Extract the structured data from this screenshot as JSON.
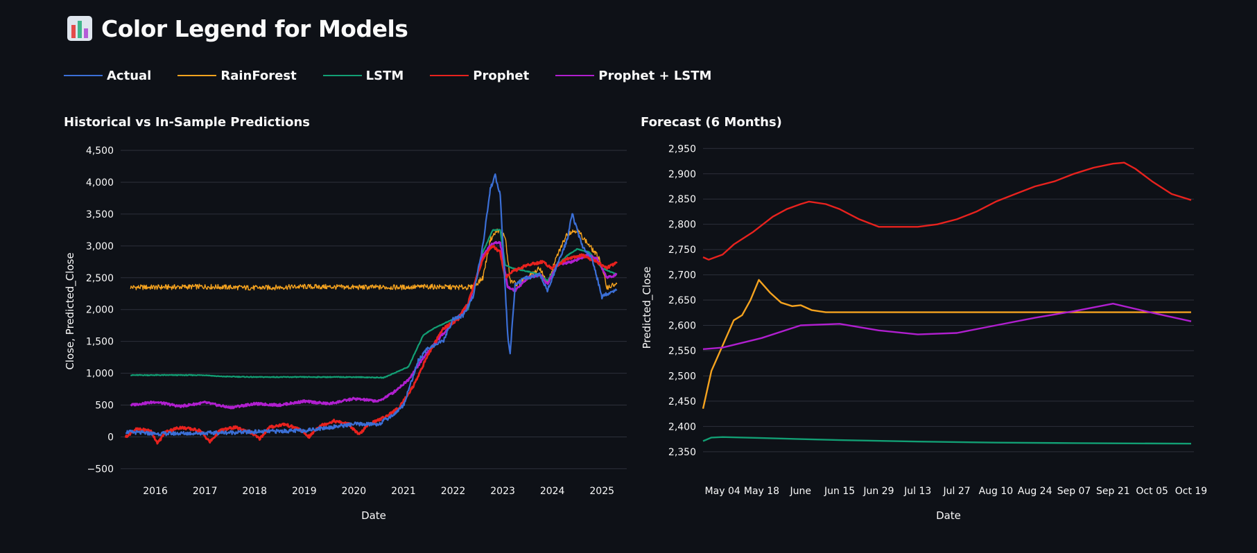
{
  "page": {
    "title": "Color Legend for Models",
    "icon": "bar-chart-icon"
  },
  "legend": [
    {
      "label": "Actual",
      "color": "#3b6fd6"
    },
    {
      "label": "RainForest",
      "color": "#f5a31f"
    },
    {
      "label": "LSTM",
      "color": "#129f74"
    },
    {
      "label": "Prophet",
      "color": "#e8221e"
    },
    {
      "label": "Prophet + LSTM",
      "color": "#b01fcf"
    }
  ],
  "chart_data": [
    {
      "id": "historical",
      "type": "line",
      "title": "Historical vs In-Sample Predictions",
      "xlabel": "Date",
      "ylabel": "Close, Predicted_Close",
      "x_unit": "year",
      "xlim": [
        2015.3,
        2025.5
      ],
      "ylim": [
        -550,
        4500
      ],
      "yticks": [
        -500,
        0,
        500,
        1000,
        1500,
        2000,
        2500,
        3000,
        3500,
        4000,
        4500
      ],
      "ytick_labels": [
        "−500",
        "0",
        "500",
        "1,000",
        "1,500",
        "2,000",
        "2,500",
        "3,000",
        "3,500",
        "4,000",
        "4,500"
      ],
      "xticks": [
        2016,
        2017,
        2018,
        2019,
        2020,
        2021,
        2022,
        2023,
        2024,
        2025
      ],
      "xtick_labels": [
        "2016",
        "2017",
        "2018",
        "2019",
        "2020",
        "2021",
        "2022",
        "2023",
        "2024",
        "2025"
      ],
      "grid": true,
      "series": [
        {
          "name": "RainForest",
          "color": "#f5a31f",
          "x": [
            2015.5,
            2016,
            2017,
            2018,
            2019,
            2020,
            2021,
            2021.5,
            2022,
            2022.4,
            2022.6,
            2022.75,
            2022.9,
            2023.05,
            2023.15,
            2023.3,
            2023.5,
            2023.75,
            2023.9,
            2024.1,
            2024.3,
            2024.5,
            2024.75,
            2024.95,
            2025.1,
            2025.3
          ],
          "y": [
            2350,
            2350,
            2360,
            2340,
            2360,
            2350,
            2350,
            2360,
            2350,
            2350,
            2500,
            3100,
            3250,
            3150,
            2450,
            2400,
            2500,
            2650,
            2400,
            2850,
            3200,
            3250,
            3000,
            2800,
            2350,
            2400
          ]
        },
        {
          "name": "LSTM",
          "color": "#129f74",
          "x": [
            2015.5,
            2016,
            2017,
            2017.3,
            2018,
            2019,
            2020,
            2020.6,
            2021.1,
            2021.4,
            2021.6,
            2022,
            2022.3,
            2022.6,
            2022.8,
            2022.95,
            2023.05,
            2023.2,
            2023.5,
            2023.75,
            2023.9,
            2024.1,
            2024.3,
            2024.5,
            2024.75,
            2025.0,
            2025.3
          ],
          "y": [
            970,
            970,
            970,
            950,
            940,
            940,
            940,
            930,
            1100,
            1600,
            1700,
            1850,
            2000,
            2900,
            3250,
            3250,
            2700,
            2650,
            2600,
            2550,
            2450,
            2700,
            2850,
            2950,
            2900,
            2650,
            2550
          ]
        },
        {
          "name": "Prophet + LSTM",
          "color": "#b01fcf",
          "x": [
            2015.5,
            2016,
            2016.5,
            2017,
            2017.5,
            2018,
            2018.5,
            2019,
            2019.5,
            2020,
            2020.5,
            2020.8,
            2021.1,
            2021.5,
            2022,
            2022.3,
            2022.6,
            2022.8,
            2022.95,
            2023.1,
            2023.25,
            2023.5,
            2023.75,
            2023.9,
            2024.1,
            2024.4,
            2024.7,
            2024.9,
            2025.1,
            2025.3
          ],
          "y": [
            500,
            550,
            480,
            540,
            460,
            520,
            500,
            560,
            520,
            600,
            560,
            700,
            900,
            1350,
            1800,
            2050,
            2850,
            3050,
            3050,
            2350,
            2300,
            2500,
            2550,
            2400,
            2700,
            2750,
            2850,
            2800,
            2500,
            2550
          ]
        },
        {
          "name": "Prophet",
          "color": "#e8221e",
          "x": [
            2015.4,
            2015.6,
            2015.9,
            2016.05,
            2016.2,
            2016.5,
            2016.9,
            2017.1,
            2017.3,
            2017.6,
            2017.9,
            2018.1,
            2018.3,
            2018.6,
            2018.9,
            2019.1,
            2019.3,
            2019.6,
            2019.9,
            2020.1,
            2020.3,
            2020.6,
            2020.9,
            2021.2,
            2021.5,
            2021.8,
            2022.1,
            2022.3,
            2022.6,
            2022.8,
            2022.95,
            2023.05,
            2023.2,
            2023.5,
            2023.8,
            2024.0,
            2024.3,
            2024.6,
            2024.9,
            2025.1,
            2025.3
          ],
          "y": [
            0,
            120,
            100,
            -100,
            80,
            150,
            100,
            -80,
            100,
            150,
            80,
            -30,
            150,
            200,
            120,
            0,
            170,
            250,
            200,
            30,
            200,
            300,
            450,
            800,
            1300,
            1700,
            1850,
            2100,
            2800,
            3000,
            2900,
            2500,
            2600,
            2700,
            2750,
            2650,
            2800,
            2850,
            2750,
            2650,
            2750
          ]
        },
        {
          "name": "Actual",
          "color": "#3b6fd6",
          "x": [
            2015.4,
            2016,
            2017,
            2018,
            2019,
            2019.5,
            2020,
            2020.5,
            2020.8,
            2021.0,
            2021.3,
            2021.5,
            2021.8,
            2022.0,
            2022.2,
            2022.4,
            2022.6,
            2022.75,
            2022.85,
            2022.95,
            2023.1,
            2023.15,
            2023.25,
            2023.5,
            2023.75,
            2023.9,
            2024.1,
            2024.3,
            2024.4,
            2024.6,
            2024.8,
            2024.9,
            2025.0,
            2025.1,
            2025.3
          ],
          "y": [
            80,
            50,
            60,
            80,
            100,
            150,
            200,
            200,
            350,
            500,
            1200,
            1400,
            1500,
            1850,
            1900,
            2200,
            3000,
            3900,
            4100,
            3800,
            1600,
            1300,
            2400,
            2500,
            2550,
            2300,
            2700,
            3100,
            3500,
            3000,
            2800,
            2500,
            2200,
            2250,
            2300
          ]
        }
      ]
    },
    {
      "id": "forecast",
      "type": "line",
      "title": "Forecast (6 Months)",
      "xlabel": "Date",
      "ylabel": "Predicted_Close",
      "x_unit": "date (2025)",
      "xlim": [
        "2025-04-27",
        "2025-10-20"
      ],
      "ylim": [
        2310,
        2960
      ],
      "yticks": [
        2350,
        2400,
        2450,
        2500,
        2550,
        2600,
        2650,
        2700,
        2750,
        2800,
        2850,
        2900,
        2950
      ],
      "ytick_labels": [
        "2,350",
        "2,400",
        "2,450",
        "2,500",
        "2,550",
        "2,600",
        "2,650",
        "2,700",
        "2,750",
        "2,800",
        "2,850",
        "2,900",
        "2,950"
      ],
      "xticks": [
        "2025-05-04",
        "2025-05-18",
        "2025-06-01",
        "2025-06-15",
        "2025-06-29",
        "2025-07-13",
        "2025-07-27",
        "2025-08-10",
        "2025-08-24",
        "2025-09-07",
        "2025-09-21",
        "2025-10-05",
        "2025-10-19"
      ],
      "xtick_labels": [
        "May 04",
        "May 18",
        "June",
        "Jun 15",
        "Jun 29",
        "Jul 13",
        "Jul 27",
        "Aug 10",
        "Aug 24",
        "Sep 07",
        "Sep 21",
        "Oct 05",
        "Oct 19"
      ],
      "grid": true,
      "series": [
        {
          "name": "Prophet",
          "color": "#e8221e",
          "x": [
            "2025-04-27",
            "2025-04-29",
            "2025-05-04",
            "2025-05-08",
            "2025-05-15",
            "2025-05-22",
            "2025-05-27",
            "2025-06-01",
            "2025-06-04",
            "2025-06-10",
            "2025-06-15",
            "2025-06-22",
            "2025-06-29",
            "2025-07-06",
            "2025-07-13",
            "2025-07-20",
            "2025-07-27",
            "2025-08-03",
            "2025-08-10",
            "2025-08-17",
            "2025-08-24",
            "2025-08-31",
            "2025-09-07",
            "2025-09-14",
            "2025-09-21",
            "2025-09-25",
            "2025-09-29",
            "2025-10-05",
            "2025-10-12",
            "2025-10-19"
          ],
          "y": [
            2735,
            2730,
            2740,
            2760,
            2785,
            2815,
            2830,
            2840,
            2845,
            2840,
            2830,
            2810,
            2795,
            2795,
            2795,
            2800,
            2810,
            2825,
            2845,
            2860,
            2875,
            2885,
            2900,
            2912,
            2920,
            2922,
            2910,
            2885,
            2860,
            2848
          ]
        },
        {
          "name": "RainForest",
          "color": "#f5a31f",
          "x": [
            "2025-04-27",
            "2025-04-30",
            "2025-05-04",
            "2025-05-08",
            "2025-05-11",
            "2025-05-14",
            "2025-05-17",
            "2025-05-21",
            "2025-05-25",
            "2025-05-29",
            "2025-06-01",
            "2025-06-05",
            "2025-06-10",
            "2025-06-20",
            "2025-10-19"
          ],
          "y": [
            2435,
            2510,
            2560,
            2610,
            2620,
            2650,
            2690,
            2665,
            2645,
            2638,
            2640,
            2630,
            2626,
            2626,
            2626
          ]
        },
        {
          "name": "Prophet + LSTM",
          "color": "#b01fcf",
          "x": [
            "2025-04-27",
            "2025-05-04",
            "2025-05-18",
            "2025-06-01",
            "2025-06-15",
            "2025-06-29",
            "2025-07-13",
            "2025-07-27",
            "2025-08-10",
            "2025-08-24",
            "2025-09-07",
            "2025-09-21",
            "2025-10-05",
            "2025-10-19"
          ],
          "y": [
            2553,
            2556,
            2575,
            2600,
            2603,
            2590,
            2582,
            2585,
            2600,
            2615,
            2628,
            2643,
            2625,
            2608
          ]
        },
        {
          "name": "LSTM",
          "color": "#129f74",
          "x": [
            "2025-04-27",
            "2025-04-30",
            "2025-05-04",
            "2025-05-18",
            "2025-06-15",
            "2025-07-13",
            "2025-08-10",
            "2025-09-07",
            "2025-10-19"
          ],
          "y": [
            2371,
            2378,
            2379,
            2377,
            2373,
            2370,
            2368,
            2367,
            2366
          ]
        }
      ]
    }
  ]
}
